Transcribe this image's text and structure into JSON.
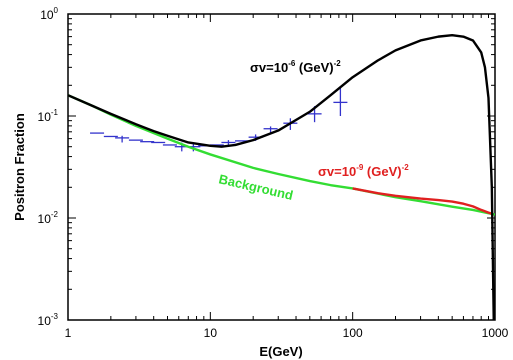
{
  "chart_data": {
    "type": "line",
    "xlabel": "E(GeV)",
    "ylabel": "Positron Fraction",
    "x_scale": "log",
    "y_scale": "log",
    "xlim": [
      1,
      1000
    ],
    "ylim": [
      0.001,
      1
    ],
    "x_ticks": [
      {
        "value": 1,
        "label": "1"
      },
      {
        "value": 10,
        "label": "10"
      },
      {
        "value": 100,
        "label": "100"
      },
      {
        "value": 1000,
        "label": "1000"
      }
    ],
    "y_ticks": [
      {
        "value": 0.001,
        "base": "10",
        "exp": "-3"
      },
      {
        "value": 0.01,
        "base": "10",
        "exp": "-2"
      },
      {
        "value": 0.1,
        "base": "10",
        "exp": "-1"
      },
      {
        "value": 1,
        "base": "10",
        "exp": "0"
      }
    ],
    "grid": false,
    "series": [
      {
        "name": "σv=10-6 (GeV)-2",
        "color": "#000000",
        "x": [
          1,
          1.5,
          2,
          3,
          4,
          5,
          7,
          10,
          12,
          15,
          20,
          30,
          50,
          70,
          100,
          150,
          200,
          300,
          400,
          500,
          600,
          700,
          800,
          850,
          900,
          950,
          980
        ],
        "y": [
          0.16,
          0.125,
          0.105,
          0.083,
          0.071,
          0.064,
          0.055,
          0.051,
          0.05,
          0.052,
          0.058,
          0.072,
          0.11,
          0.16,
          0.24,
          0.35,
          0.44,
          0.55,
          0.6,
          0.62,
          0.6,
          0.55,
          0.42,
          0.3,
          0.15,
          0.02,
          0.001
        ]
      },
      {
        "name": "σv=10-9 (GeV)-2",
        "color": "#e02020",
        "x": [
          100,
          150,
          200,
          300,
          400,
          500,
          600,
          700,
          800,
          900,
          950
        ],
        "y": [
          0.0195,
          0.0175,
          0.0165,
          0.0155,
          0.015,
          0.0145,
          0.0138,
          0.013,
          0.012,
          0.0113,
          0.011
        ]
      },
      {
        "name": "Background",
        "color": "#33dd33",
        "x": [
          1,
          1.5,
          2,
          3,
          5,
          7,
          10,
          20,
          30,
          50,
          70,
          100,
          200,
          300,
          500,
          700,
          1000
        ],
        "y": [
          0.16,
          0.125,
          0.103,
          0.08,
          0.06,
          0.05,
          0.042,
          0.031,
          0.027,
          0.023,
          0.021,
          0.0195,
          0.016,
          0.0146,
          0.0129,
          0.012,
          0.0108
        ]
      }
    ],
    "data_points": {
      "color": "#3333cc",
      "points": [
        {
          "x": 1.6,
          "y": 0.068,
          "err_lo": 0.068,
          "err_hi": 0.068
        },
        {
          "x": 2.0,
          "y": 0.063,
          "err_lo": 0.063,
          "err_hi": 0.063
        },
        {
          "x": 2.4,
          "y": 0.061,
          "err_lo": 0.055,
          "err_hi": 0.064
        },
        {
          "x": 3.0,
          "y": 0.058,
          "err_lo": 0.058,
          "err_hi": 0.058
        },
        {
          "x": 3.6,
          "y": 0.056,
          "err_lo": 0.056,
          "err_hi": 0.056
        },
        {
          "x": 4.3,
          "y": 0.055,
          "err_lo": 0.055,
          "err_hi": 0.055
        },
        {
          "x": 5.2,
          "y": 0.052,
          "err_lo": 0.052,
          "err_hi": 0.052
        },
        {
          "x": 6.3,
          "y": 0.05,
          "err_lo": 0.045,
          "err_hi": 0.055
        },
        {
          "x": 7.6,
          "y": 0.05,
          "err_lo": 0.045,
          "err_hi": 0.053
        },
        {
          "x": 9.2,
          "y": 0.051,
          "err_lo": 0.051,
          "err_hi": 0.051
        },
        {
          "x": 11.1,
          "y": 0.052,
          "err_lo": 0.052,
          "err_hi": 0.052
        },
        {
          "x": 13.4,
          "y": 0.055,
          "err_lo": 0.05,
          "err_hi": 0.058
        },
        {
          "x": 16.7,
          "y": 0.057,
          "err_lo": 0.057,
          "err_hi": 0.057
        },
        {
          "x": 20.8,
          "y": 0.062,
          "err_lo": 0.057,
          "err_hi": 0.066
        },
        {
          "x": 26.5,
          "y": 0.075,
          "err_lo": 0.068,
          "err_hi": 0.079
        },
        {
          "x": 36.5,
          "y": 0.085,
          "err_lo": 0.073,
          "err_hi": 0.095
        },
        {
          "x": 54.0,
          "y": 0.105,
          "err_lo": 0.087,
          "err_hi": 0.125
        },
        {
          "x": 82.0,
          "y": 0.136,
          "err_lo": 0.1,
          "err_hi": 0.19
        }
      ]
    },
    "annotations": [
      {
        "id": "sigma6",
        "text": "σv=10",
        "exp": "-6",
        "tail": " (GeV)",
        "tail_exp": "-2",
        "color": "#000000"
      },
      {
        "id": "sigma9",
        "text": "σv=10",
        "exp": "-9",
        "tail": " (GeV)",
        "tail_exp": "-2",
        "color": "#e02020"
      },
      {
        "id": "background",
        "text": "Background",
        "color": "#33dd33"
      }
    ]
  }
}
